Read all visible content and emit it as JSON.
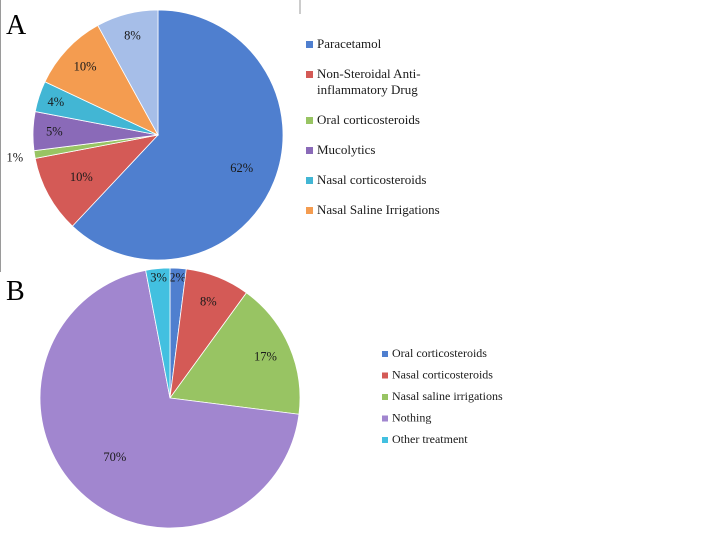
{
  "chart_data": [
    {
      "type": "pie",
      "panel_label": "A",
      "start_angle_deg": 0,
      "direction": "clockwise",
      "categories": [
        "Paracetamol",
        "Non-Steroidal Anti-inflammatory Drug",
        "Oral corticosteroids",
        "Mucolytics",
        "Nasal corticosteroids",
        "Nasal Saline Irrigations",
        ""
      ],
      "values": [
        62,
        10,
        1,
        5,
        4,
        10,
        8
      ],
      "data_labels": [
        "62%",
        "10%",
        "1%",
        "5%",
        "4%",
        "10%",
        "8%"
      ],
      "colors": [
        "#4f7fcf",
        "#d45a56",
        "#98c463",
        "#8a6ab8",
        "#42b6d4",
        "#f49c50",
        "#a6bee8"
      ],
      "legend": [
        {
          "line1": "Paracetamol",
          "line2": "",
          "color": "#4f7fcf"
        },
        {
          "line1": "Non-Steroidal Anti-",
          "line2": "inflammatory Drug",
          "color": "#d45a56"
        },
        {
          "line1": "Oral corticosteroids",
          "line2": "",
          "color": "#98c463"
        },
        {
          "line1": "Mucolytics",
          "line2": "",
          "color": "#8a6ab8"
        },
        {
          "line1": "Nasal corticosteroids",
          "line2": "",
          "color": "#42b6d4"
        },
        {
          "line1": "Nasal Saline Irrigations",
          "line2": "",
          "color": "#f49c50"
        }
      ],
      "legend_placement": "right"
    },
    {
      "type": "pie",
      "panel_label": "B",
      "start_angle_deg": 0,
      "direction": "clockwise",
      "categories": [
        "Oral corticosteroids",
        "Nasal corticosteroids",
        "Nasal saline irrigations",
        "Nothing",
        "Other treatment"
      ],
      "values": [
        2,
        8,
        17,
        70,
        3
      ],
      "data_labels": [
        "2%",
        "8%",
        "17%",
        "70%",
        "3%"
      ],
      "colors": [
        "#4f7fcf",
        "#d45a56",
        "#98c463",
        "#a186cf",
        "#42c0e0"
      ],
      "legend": [
        {
          "line1": "Oral corticosteroids",
          "line2": "",
          "color": "#4f7fcf"
        },
        {
          "line1": "Nasal corticosteroids",
          "line2": "",
          "color": "#d45a56"
        },
        {
          "line1": "Nasal saline irrigations",
          "line2": "",
          "color": "#98c463"
        },
        {
          "line1": "Nothing",
          "line2": "",
          "color": "#a186cf"
        },
        {
          "line1": "Other treatment",
          "line2": "",
          "color": "#42c0e0"
        }
      ],
      "legend_placement": "right"
    }
  ]
}
